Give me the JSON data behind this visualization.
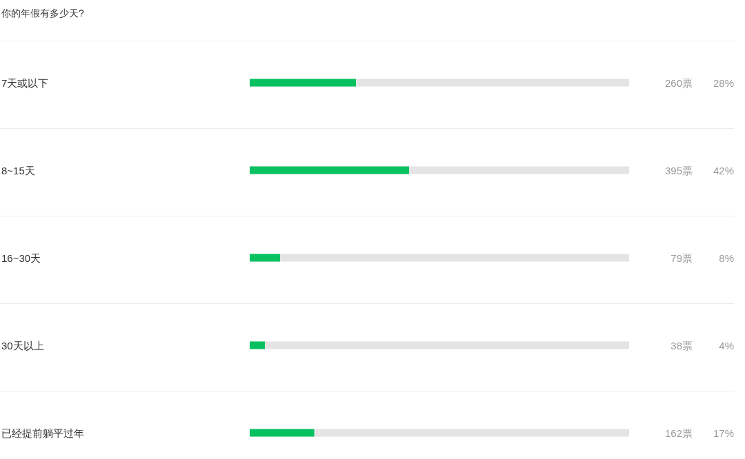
{
  "chart_data": {
    "type": "bar",
    "orientation": "horizontal",
    "title": "你的年假有多少天?",
    "categories": [
      "7天或以下",
      "8~15天",
      "16~30天",
      "30天以上",
      "已经提前躺平过年"
    ],
    "values": [
      28,
      42,
      8,
      4,
      17
    ],
    "color": "#07c160",
    "xlim": [
      0,
      100
    ],
    "value_labels": [
      "28%",
      "42%",
      "8%",
      "4%",
      "17%"
    ],
    "annotations": [
      "260票",
      "395票",
      "79票",
      "38票",
      "162票"
    ],
    "grid": "y",
    "tick_labels": "y"
  }
}
